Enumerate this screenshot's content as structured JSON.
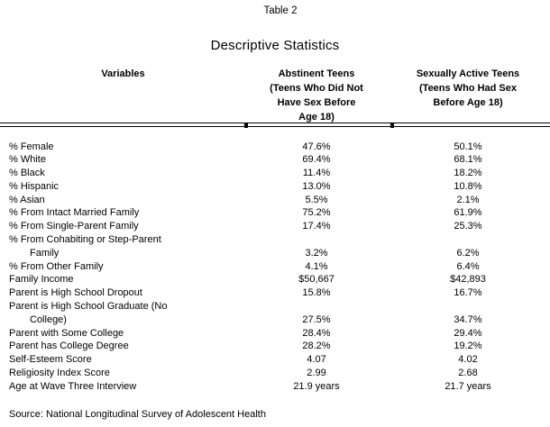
{
  "page": {
    "caption": "Table 2",
    "title": "Descriptive Statistics",
    "source_note": "Source: National Longitudinal Survey of Adolescent Health"
  },
  "table": {
    "header": {
      "variables": "Variables",
      "abstinent_lines": [
        "Abstinent Teens",
        "(Teens Who Did Not",
        "Have Sex Before",
        "Age 18)"
      ],
      "active_lines": [
        "Sexually Active Teens",
        "(Teens Who Had Sex",
        "Before Age 18)"
      ]
    },
    "rows": [
      {
        "label": "% Female",
        "abstinent": "47.6%",
        "active": "50.1%"
      },
      {
        "label": "% White",
        "abstinent": "69.4%",
        "active": "68.1%"
      },
      {
        "label": "% Black",
        "abstinent": "11.4%",
        "active": "18.2%"
      },
      {
        "label": "% Hispanic",
        "abstinent": "13.0%",
        "active": "10.8%"
      },
      {
        "label": "% Asian",
        "abstinent": "5.5%",
        "active": "2.1%"
      },
      {
        "label": "% From Intact Married Family",
        "abstinent": "75.2%",
        "active": "61.9%"
      },
      {
        "label": "% From Single-Parent Family",
        "abstinent": "17.4%",
        "active": "25.3%"
      },
      {
        "label": "% From Cohabiting or Step-Parent",
        "label2": "Family",
        "abstinent": "3.2%",
        "active": "6.2%"
      },
      {
        "label": "% From Other Family",
        "abstinent": "4.1%",
        "active": "6.4%"
      },
      {
        "label": "Family Income",
        "abstinent": "$50,667",
        "active": "$42,893"
      },
      {
        "label": "Parent is High School Dropout",
        "abstinent": "15.8%",
        "active": "16.7%"
      },
      {
        "label": "Parent is High School Graduate (No",
        "label2": "College)",
        "abstinent": "27.5%",
        "active": "34.7%"
      },
      {
        "label": "Parent with Some College",
        "abstinent": "28.4%",
        "active": "29.4%"
      },
      {
        "label": "Parent has College Degree",
        "abstinent": "28.2%",
        "active": "19.2%"
      },
      {
        "label": "Self-Esteem Score",
        "abstinent": "4.07",
        "active": "4.02"
      },
      {
        "label": "Religiosity Index Score",
        "abstinent": "2.99",
        "active": "2.68"
      },
      {
        "label": "Age at Wave Three Interview",
        "abstinent": "21.9 years",
        "active": "21.7 years"
      }
    ]
  },
  "chart_data": {
    "type": "table",
    "title": "Descriptive Statistics",
    "columns": [
      "Variables",
      "Abstinent Teens (Teens Who Did Not Have Sex Before Age 18)",
      "Sexually Active Teens (Teens Who Had Sex Before Age 18)"
    ],
    "rows": [
      [
        "% Female",
        "47.6%",
        "50.1%"
      ],
      [
        "% White",
        "69.4%",
        "68.1%"
      ],
      [
        "% Black",
        "11.4%",
        "18.2%"
      ],
      [
        "% Hispanic",
        "13.0%",
        "10.8%"
      ],
      [
        "% Asian",
        "5.5%",
        "2.1%"
      ],
      [
        "% From Intact Married Family",
        "75.2%",
        "61.9%"
      ],
      [
        "% From Single-Parent Family",
        "17.4%",
        "25.3%"
      ],
      [
        "% From Cohabiting or Step-Parent Family",
        "3.2%",
        "6.2%"
      ],
      [
        "% From Other Family",
        "4.1%",
        "6.4%"
      ],
      [
        "Family Income",
        "$50,667",
        "$42,893"
      ],
      [
        "Parent is High School Dropout",
        "15.8%",
        "16.7%"
      ],
      [
        "Parent is High School Graduate (No College)",
        "27.5%",
        "34.7%"
      ],
      [
        "Parent with Some College",
        "28.4%",
        "29.4%"
      ],
      [
        "Parent has College Degree",
        "28.2%",
        "19.2%"
      ],
      [
        "Self-Esteem Score",
        "4.07",
        "4.02"
      ],
      [
        "Religiosity Index Score",
        "2.99",
        "2.68"
      ],
      [
        "Age at Wave Three Interview",
        "21.9 years",
        "21.7 years"
      ]
    ],
    "source": "Source: National Longitudinal Survey of Adolescent Health"
  }
}
